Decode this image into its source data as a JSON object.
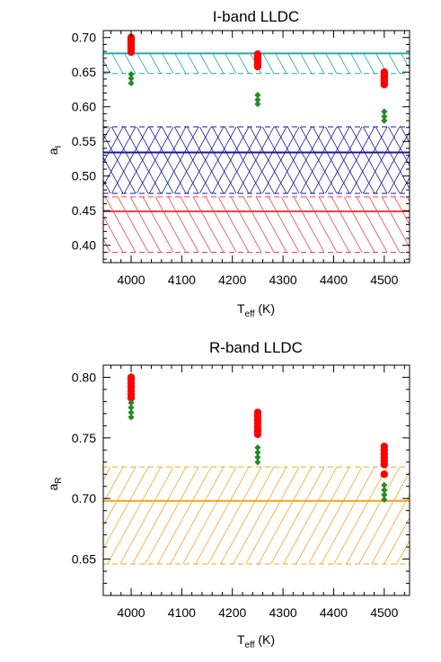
{
  "chart_data": [
    {
      "type": "scatter",
      "title": "I-band LLDC",
      "xlabel_main": "T",
      "xlabel_sub": "eff",
      "xlabel_unit": " (K)",
      "ylabel_main": "a",
      "ylabel_sub": "I",
      "xlim": [
        3945,
        4550
      ],
      "ylim": [
        0.375,
        0.71
      ],
      "xticks": [
        4000,
        4100,
        4200,
        4300,
        4400,
        4500
      ],
      "yticks": [
        0.4,
        0.45,
        0.5,
        0.55,
        0.6,
        0.65,
        0.7
      ],
      "ytick_labels": [
        "0.40",
        "0.45",
        "0.50",
        "0.55",
        "0.60",
        "0.65",
        "0.70"
      ],
      "bands": [
        {
          "color": "#22aaaa",
          "center": 0.677,
          "low": 0.648,
          "high": 0.677,
          "hatch": "backslash"
        },
        {
          "color": "#1a1a99",
          "center": 0.534,
          "low": 0.475,
          "high": 0.571,
          "hatch": "cross"
        },
        {
          "color": "#ee4444",
          "center": 0.449,
          "low": 0.39,
          "high": 0.47,
          "hatch": "backslash"
        }
      ],
      "series": [
        {
          "marker": "circle",
          "color": "#ff0000",
          "points": [
            {
              "x": 4000,
              "y": 0.7
            },
            {
              "x": 4000,
              "y": 0.697
            },
            {
              "x": 4000,
              "y": 0.694
            },
            {
              "x": 4000,
              "y": 0.691
            },
            {
              "x": 4000,
              "y": 0.688
            },
            {
              "x": 4000,
              "y": 0.685
            },
            {
              "x": 4000,
              "y": 0.682
            },
            {
              "x": 4000,
              "y": 0.679
            },
            {
              "x": 4250,
              "y": 0.676
            },
            {
              "x": 4250,
              "y": 0.673
            },
            {
              "x": 4250,
              "y": 0.67
            },
            {
              "x": 4250,
              "y": 0.667
            },
            {
              "x": 4250,
              "y": 0.664
            },
            {
              "x": 4250,
              "y": 0.661
            },
            {
              "x": 4250,
              "y": 0.658
            },
            {
              "x": 4500,
              "y": 0.65
            },
            {
              "x": 4500,
              "y": 0.647
            },
            {
              "x": 4500,
              "y": 0.644
            },
            {
              "x": 4500,
              "y": 0.641
            },
            {
              "x": 4500,
              "y": 0.638
            },
            {
              "x": 4500,
              "y": 0.635
            },
            {
              "x": 4500,
              "y": 0.632
            }
          ]
        },
        {
          "marker": "diamond",
          "color": "#228b22",
          "points": [
            {
              "x": 4000,
              "y": 0.647
            },
            {
              "x": 4000,
              "y": 0.641
            },
            {
              "x": 4000,
              "y": 0.634
            },
            {
              "x": 4250,
              "y": 0.617
            },
            {
              "x": 4250,
              "y": 0.61
            },
            {
              "x": 4250,
              "y": 0.604
            },
            {
              "x": 4500,
              "y": 0.593
            },
            {
              "x": 4500,
              "y": 0.586
            },
            {
              "x": 4500,
              "y": 0.58
            }
          ]
        }
      ]
    },
    {
      "type": "scatter",
      "title": "R-band LLDC",
      "xlabel_main": "T",
      "xlabel_sub": "eff",
      "xlabel_unit": " (K)",
      "ylabel_main": "a",
      "ylabel_sub": "R",
      "xlim": [
        3945,
        4550
      ],
      "ylim": [
        0.62,
        0.81
      ],
      "xticks": [
        4000,
        4100,
        4200,
        4300,
        4400,
        4500
      ],
      "yticks": [
        0.65,
        0.7,
        0.75,
        0.8
      ],
      "ytick_labels": [
        "0.65",
        "0.70",
        "0.75",
        "0.80"
      ],
      "bands": [
        {
          "color": "#f5a623",
          "center": 0.698,
          "low": 0.646,
          "high": 0.726,
          "hatch": "slash"
        }
      ],
      "series": [
        {
          "marker": "circle",
          "color": "#ff0000",
          "points": [
            {
              "x": 4000,
              "y": 0.8
            },
            {
              "x": 4000,
              "y": 0.798
            },
            {
              "x": 4000,
              "y": 0.795
            },
            {
              "x": 4000,
              "y": 0.792
            },
            {
              "x": 4000,
              "y": 0.789
            },
            {
              "x": 4000,
              "y": 0.786
            },
            {
              "x": 4000,
              "y": 0.783
            },
            {
              "x": 4250,
              "y": 0.771
            },
            {
              "x": 4250,
              "y": 0.768
            },
            {
              "x": 4250,
              "y": 0.765
            },
            {
              "x": 4250,
              "y": 0.762
            },
            {
              "x": 4250,
              "y": 0.759
            },
            {
              "x": 4250,
              "y": 0.756
            },
            {
              "x": 4250,
              "y": 0.753
            },
            {
              "x": 4500,
              "y": 0.743
            },
            {
              "x": 4500,
              "y": 0.74
            },
            {
              "x": 4500,
              "y": 0.737
            },
            {
              "x": 4500,
              "y": 0.734
            },
            {
              "x": 4500,
              "y": 0.731
            },
            {
              "x": 4500,
              "y": 0.728
            },
            {
              "x": 4500,
              "y": 0.72
            }
          ]
        },
        {
          "marker": "diamond",
          "color": "#228b22",
          "points": [
            {
              "x": 4000,
              "y": 0.779
            },
            {
              "x": 4000,
              "y": 0.775
            },
            {
              "x": 4000,
              "y": 0.771
            },
            {
              "x": 4000,
              "y": 0.767
            },
            {
              "x": 4250,
              "y": 0.742
            },
            {
              "x": 4250,
              "y": 0.738
            },
            {
              "x": 4250,
              "y": 0.734
            },
            {
              "x": 4250,
              "y": 0.73
            },
            {
              "x": 4500,
              "y": 0.711
            },
            {
              "x": 4500,
              "y": 0.707
            },
            {
              "x": 4500,
              "y": 0.703
            },
            {
              "x": 4500,
              "y": 0.699
            }
          ]
        }
      ]
    }
  ]
}
